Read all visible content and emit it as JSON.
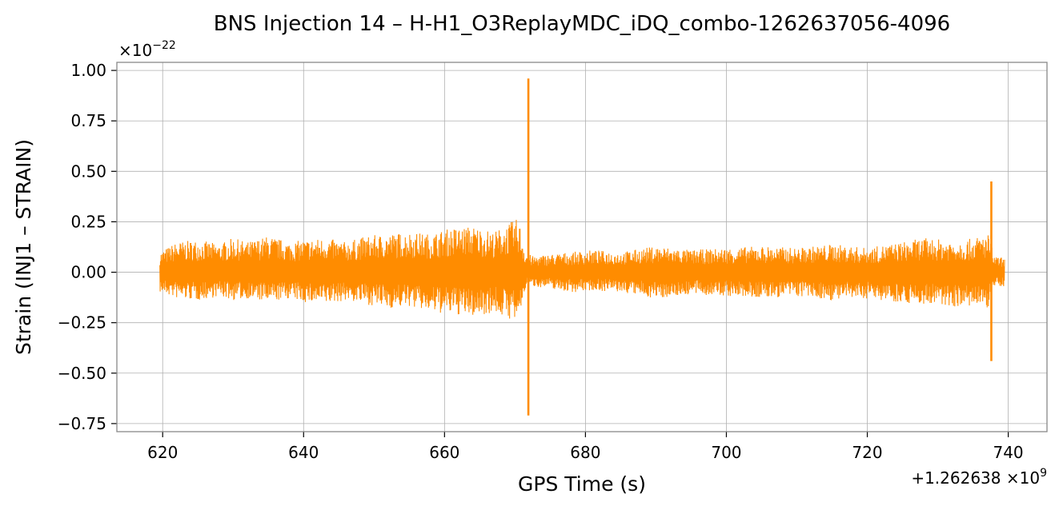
{
  "chart_data": {
    "type": "line",
    "title": "BNS Injection 14 – H-H1_O3ReplayMDC_iDQ_combo-1262637056-4096",
    "xlabel": "GPS Time (s)",
    "ylabel": "Strain (INJ1 – STRAIN)",
    "x_offset_text": {
      "prefix": "+1.262638",
      "base": "×10",
      "exp": "9"
    },
    "y_scale_text": {
      "base": "×10",
      "exp": "−22"
    },
    "xlim": [
      613.5,
      745.5
    ],
    "ylim": [
      -0.79,
      1.04
    ],
    "xticks": [
      620,
      640,
      660,
      680,
      700,
      720,
      740
    ],
    "xtick_labels": [
      "620",
      "640",
      "660",
      "680",
      "700",
      "720",
      "740"
    ],
    "yticks": [
      -0.75,
      -0.5,
      -0.25,
      0.0,
      0.25,
      0.5,
      0.75,
      1.0
    ],
    "ytick_labels": [
      "−0.75",
      "−0.50",
      "−0.25",
      "0.00",
      "0.25",
      "0.50",
      "0.75",
      "1.00"
    ],
    "grid": true,
    "series": [
      {
        "color": "#ff8c00",
        "envelope": {
          "x": [
            619.6,
            622,
            625,
            628,
            630,
            632,
            635,
            638,
            640,
            643,
            646,
            649,
            652,
            655,
            658,
            661,
            664,
            667,
            669,
            670.5,
            671.5,
            672.5,
            675,
            678,
            681,
            685,
            690,
            695,
            700,
            705,
            710,
            715,
            720,
            725,
            728,
            731,
            734,
            736,
            737.2,
            738,
            739.5
          ],
          "upper": [
            0.1,
            0.15,
            0.16,
            0.14,
            0.17,
            0.15,
            0.18,
            0.15,
            0.16,
            0.17,
            0.15,
            0.18,
            0.19,
            0.2,
            0.19,
            0.22,
            0.23,
            0.2,
            0.24,
            0.27,
            0.1,
            0.08,
            0.09,
            0.1,
            0.11,
            0.1,
            0.13,
            0.11,
            0.12,
            0.13,
            0.12,
            0.14,
            0.12,
            0.15,
            0.17,
            0.16,
            0.16,
            0.18,
            0.19,
            0.08,
            0.07
          ],
          "lower": [
            -0.1,
            -0.13,
            -0.14,
            -0.12,
            -0.14,
            -0.13,
            -0.15,
            -0.13,
            -0.15,
            -0.16,
            -0.14,
            -0.16,
            -0.18,
            -0.17,
            -0.2,
            -0.21,
            -0.22,
            -0.2,
            -0.23,
            -0.25,
            -0.08,
            -0.07,
            -0.08,
            -0.1,
            -0.09,
            -0.1,
            -0.13,
            -0.11,
            -0.12,
            -0.13,
            -0.12,
            -0.14,
            -0.13,
            -0.15,
            -0.16,
            -0.17,
            -0.17,
            -0.18,
            -0.18,
            -0.07,
            -0.07
          ]
        },
        "spikes": [
          {
            "x": 671.9,
            "max": 0.96,
            "min": -0.71
          },
          {
            "x": 737.6,
            "max": 0.45,
            "min": -0.44
          }
        ]
      }
    ]
  }
}
